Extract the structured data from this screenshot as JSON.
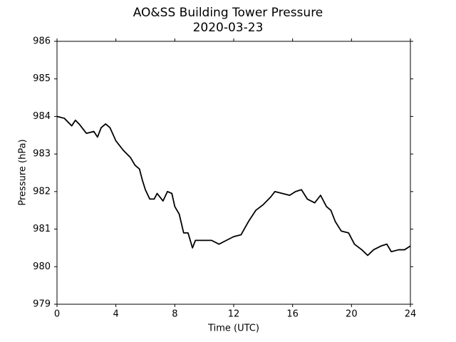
{
  "chart_data": {
    "type": "line",
    "title": "AO&SS Building Tower Pressure",
    "subtitle": "2020-03-23",
    "x_label": "Time (UTC)",
    "y_label": "Pressure (hPa)",
    "x": [
      0,
      0.5,
      1,
      1.25,
      1.5,
      2,
      2.5,
      2.75,
      3,
      3.3,
      3.6,
      4,
      4.5,
      5,
      5.3,
      5.6,
      5.8,
      6,
      6.3,
      6.6,
      6.8,
      7.2,
      7.5,
      7.8,
      8,
      8.3,
      8.6,
      8.9,
      9.2,
      9.4,
      10,
      10.5,
      11,
      11.5,
      12,
      12.5,
      13,
      13.5,
      14,
      14.5,
      14.8,
      15.3,
      15.8,
      16.2,
      16.6,
      17,
      17.5,
      17.9,
      18.3,
      18.6,
      18.9,
      19.3,
      19.8,
      20.2,
      20.7,
      21.1,
      21.5,
      22,
      22.4,
      22.7,
      23.2,
      23.6,
      24
    ],
    "series": [
      {
        "name": "Pressure",
        "color": "#000000",
        "values": [
          984.0,
          983.95,
          983.75,
          983.9,
          983.8,
          983.55,
          983.6,
          983.45,
          983.7,
          983.8,
          983.7,
          983.35,
          983.1,
          982.9,
          982.7,
          982.6,
          982.3,
          982.05,
          981.8,
          981.8,
          981.95,
          981.75,
          982.0,
          981.95,
          981.6,
          981.4,
          980.9,
          980.9,
          980.5,
          980.7,
          980.7,
          980.7,
          980.6,
          980.7,
          980.8,
          980.85,
          981.2,
          981.5,
          981.65,
          981.85,
          982.0,
          981.95,
          981.9,
          982.0,
          982.05,
          981.8,
          981.7,
          981.9,
          981.6,
          981.5,
          981.2,
          980.95,
          980.9,
          980.6,
          980.45,
          980.3,
          980.45,
          980.55,
          980.6,
          980.4,
          980.45,
          980.45,
          980.55
        ]
      }
    ],
    "xlim": [
      0,
      24
    ],
    "xticks": [
      0,
      4,
      8,
      12,
      16,
      20,
      24
    ],
    "ylim": [
      979,
      986
    ],
    "yticks": [
      979,
      980,
      981,
      982,
      983,
      984,
      985,
      986
    ],
    "grid": false
  }
}
